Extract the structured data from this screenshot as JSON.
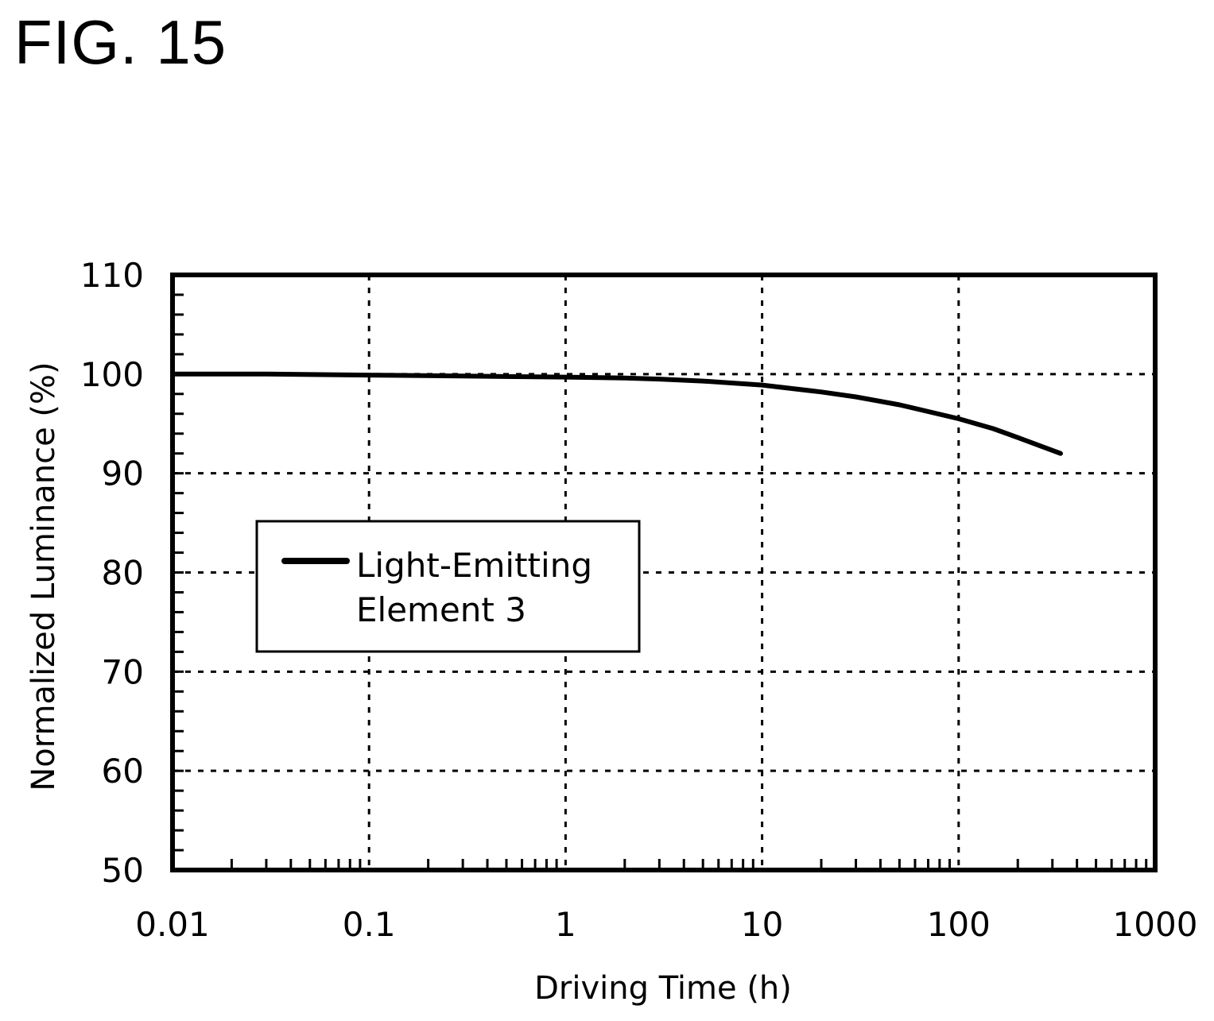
{
  "figure": {
    "label": "FIG. 15"
  },
  "chart_data": {
    "type": "line",
    "title": "",
    "xlabel": "Driving Time (h)",
    "ylabel": "Normalized Luminance (%)",
    "xscale": "log",
    "xlim": [
      0.01,
      1000
    ],
    "ylim": [
      50,
      110
    ],
    "xticks": [
      0.01,
      0.1,
      1,
      10,
      100,
      1000
    ],
    "xtick_labels": [
      "0.01",
      "0.1",
      "1",
      "10",
      "100",
      "1000"
    ],
    "yticks": [
      50,
      60,
      70,
      80,
      90,
      100,
      110
    ],
    "ytick_labels": [
      "50",
      "60",
      "70",
      "80",
      "90",
      "100",
      "110"
    ],
    "grid": true,
    "legend_position": "center-left",
    "series": [
      {
        "name": "Light-Emitting Element 3",
        "legend_lines": [
          "Light-Emitting",
          "Element 3"
        ],
        "color": "#000000",
        "x": [
          0.01,
          0.03,
          0.1,
          0.3,
          1,
          2,
          3,
          5,
          10,
          20,
          30,
          50,
          100,
          150,
          200,
          330
        ],
        "y": [
          100.0,
          100.0,
          99.9,
          99.8,
          99.7,
          99.6,
          99.5,
          99.3,
          98.9,
          98.2,
          97.7,
          96.9,
          95.5,
          94.5,
          93.6,
          92.0
        ]
      }
    ]
  }
}
